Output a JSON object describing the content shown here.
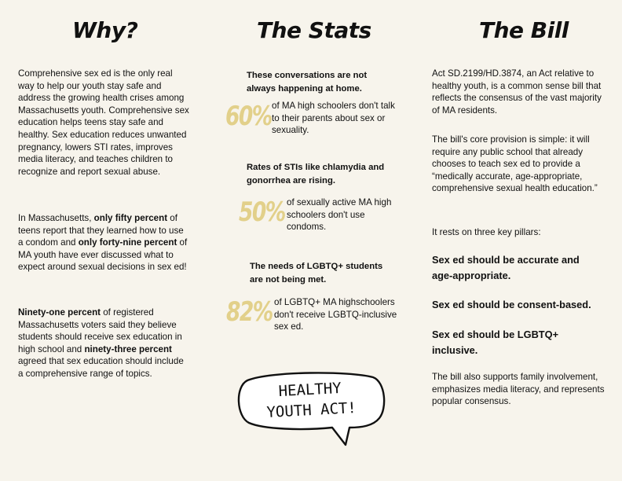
{
  "why": {
    "heading": "Why?",
    "p1": "Comprehensive sex ed is the only real way to help our youth stay safe and address the growing health crises among Massachusetts youth. Comprehensive sex education helps teens stay safe and healthy. Sex education reduces unwanted pregnancy, lowers STI rates, improves media literacy, and teaches children to recognize and report sexual abuse.",
    "p2_a": "In Massachusetts, ",
    "p2_b": "only fifty percent",
    "p2_c": " of teens report that they learned how to use a condom and ",
    "p2_d": "only forty-nine percent",
    "p2_e": " of MA youth have ever discussed what to expect around sexual decisions in sex ed!",
    "p3_a": "Ninety-one percent",
    "p3_b": " of registered Massachusetts voters said they believe students should receive sex education in high school and ",
    "p3_c": "ninety-three percent",
    "p3_d": " agreed that sex education should include a comprehensive range of topics."
  },
  "stats": {
    "heading": "The Stats",
    "items": [
      {
        "headline": "These conversations are not always happening at home.",
        "percent": "60%",
        "text": "of MA high schoolers don't talk to their parents about sex or sexuality."
      },
      {
        "headline": "Rates of STIs like chlamydia and gonorrhea are rising.",
        "percent": "50%",
        "text": "of sexually active MA high schoolers don't use condoms."
      },
      {
        "headline": "The needs of LGBTQ+ students are not being met.",
        "percent": "82%",
        "text": "of LGBTQ+ MA highschoolers don't receive LGBTQ-inclusive sex ed."
      }
    ],
    "bubble_line1": "HEALTHY",
    "bubble_line2": "YOUTH ACT!"
  },
  "bill": {
    "heading": "The Bill",
    "p1": "Act SD.2199/HD.3874, an Act relative to healthy youth, is a common sense bill that reflects the consensus of the vast majority of MA residents.",
    "p2": "The bill's core provision is simple: it will require any public school that already chooses to teach sex ed to provide a “medically accurate, age-appropriate, comprehensive sexual health education.”",
    "p3": "It rests on three key pillars:",
    "pillars": [
      "Sex ed should be accurate and age-appropriate.",
      "Sex ed should be consent-based.",
      "Sex ed should be LGBTQ+ inclusive."
    ],
    "p4": "The bill also supports family involvement, emphasizes media literacy, and represents popular consensus."
  },
  "colors": {
    "background": "#f7f4ec",
    "percent_accent": "#e2d08a",
    "text": "#111111"
  }
}
